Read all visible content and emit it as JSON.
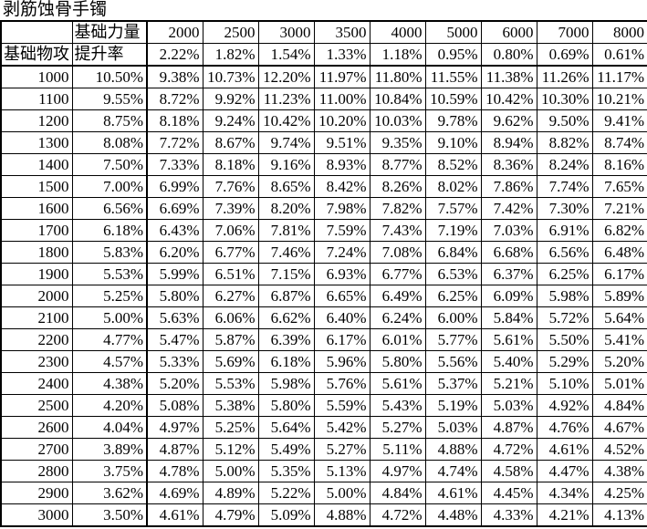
{
  "title": "剥筋蚀骨手镯",
  "table": {
    "corner_label": "",
    "strength_header": "基础力量",
    "attack_header": "基础物攻",
    "rate_header": "提升率",
    "strength_columns": [
      "2000",
      "2500",
      "3000",
      "3500",
      "4000",
      "5000",
      "6000",
      "7000",
      "8000"
    ],
    "base_rates": [
      "2.22%",
      "1.82%",
      "1.54%",
      "1.33%",
      "1.18%",
      "0.95%",
      "0.80%",
      "0.69%",
      "0.61%"
    ],
    "rows": [
      {
        "attack": "1000",
        "rate": "10.50%",
        "values": [
          "9.38%",
          "10.73%",
          "12.20%",
          "11.97%",
          "11.80%",
          "11.55%",
          "11.38%",
          "11.26%",
          "11.17%"
        ]
      },
      {
        "attack": "1100",
        "rate": "9.55%",
        "values": [
          "8.72%",
          "9.92%",
          "11.23%",
          "11.00%",
          "10.84%",
          "10.59%",
          "10.42%",
          "10.30%",
          "10.21%"
        ]
      },
      {
        "attack": "1200",
        "rate": "8.75%",
        "values": [
          "8.18%",
          "9.24%",
          "10.42%",
          "10.20%",
          "10.03%",
          "9.78%",
          "9.62%",
          "9.50%",
          "9.41%"
        ]
      },
      {
        "attack": "1300",
        "rate": "8.08%",
        "values": [
          "7.72%",
          "8.67%",
          "9.74%",
          "9.51%",
          "9.35%",
          "9.10%",
          "8.94%",
          "8.82%",
          "8.74%"
        ]
      },
      {
        "attack": "1400",
        "rate": "7.50%",
        "values": [
          "7.33%",
          "8.18%",
          "9.16%",
          "8.93%",
          "8.77%",
          "8.52%",
          "8.36%",
          "8.24%",
          "8.16%"
        ]
      },
      {
        "attack": "1500",
        "rate": "7.00%",
        "values": [
          "6.99%",
          "7.76%",
          "8.65%",
          "8.42%",
          "8.26%",
          "8.02%",
          "7.86%",
          "7.74%",
          "7.65%"
        ]
      },
      {
        "attack": "1600",
        "rate": "6.56%",
        "values": [
          "6.69%",
          "7.39%",
          "8.20%",
          "7.98%",
          "7.82%",
          "7.57%",
          "7.42%",
          "7.30%",
          "7.21%"
        ]
      },
      {
        "attack": "1700",
        "rate": "6.18%",
        "values": [
          "6.43%",
          "7.06%",
          "7.81%",
          "7.59%",
          "7.43%",
          "7.19%",
          "7.03%",
          "6.91%",
          "6.82%"
        ]
      },
      {
        "attack": "1800",
        "rate": "5.83%",
        "values": [
          "6.20%",
          "6.77%",
          "7.46%",
          "7.24%",
          "7.08%",
          "6.84%",
          "6.68%",
          "6.56%",
          "6.48%"
        ]
      },
      {
        "attack": "1900",
        "rate": "5.53%",
        "values": [
          "5.99%",
          "6.51%",
          "7.15%",
          "6.93%",
          "6.77%",
          "6.53%",
          "6.37%",
          "6.25%",
          "6.17%"
        ]
      },
      {
        "attack": "2000",
        "rate": "5.25%",
        "values": [
          "5.80%",
          "6.27%",
          "6.87%",
          "6.65%",
          "6.49%",
          "6.25%",
          "6.09%",
          "5.98%",
          "5.89%"
        ]
      },
      {
        "attack": "2100",
        "rate": "5.00%",
        "values": [
          "5.63%",
          "6.06%",
          "6.62%",
          "6.40%",
          "6.24%",
          "6.00%",
          "5.84%",
          "5.72%",
          "5.64%"
        ]
      },
      {
        "attack": "2200",
        "rate": "4.77%",
        "values": [
          "5.47%",
          "5.87%",
          "6.39%",
          "6.17%",
          "6.01%",
          "5.77%",
          "5.61%",
          "5.50%",
          "5.41%"
        ]
      },
      {
        "attack": "2300",
        "rate": "4.57%",
        "values": [
          "5.33%",
          "5.69%",
          "6.18%",
          "5.96%",
          "5.80%",
          "5.56%",
          "5.40%",
          "5.29%",
          "5.20%"
        ]
      },
      {
        "attack": "2400",
        "rate": "4.38%",
        "values": [
          "5.20%",
          "5.53%",
          "5.98%",
          "5.76%",
          "5.61%",
          "5.37%",
          "5.21%",
          "5.10%",
          "5.01%"
        ]
      },
      {
        "attack": "2500",
        "rate": "4.20%",
        "values": [
          "5.08%",
          "5.38%",
          "5.80%",
          "5.59%",
          "5.43%",
          "5.19%",
          "5.03%",
          "4.92%",
          "4.84%"
        ]
      },
      {
        "attack": "2600",
        "rate": "4.04%",
        "values": [
          "4.97%",
          "5.25%",
          "5.64%",
          "5.42%",
          "5.27%",
          "5.03%",
          "4.87%",
          "4.76%",
          "4.67%"
        ]
      },
      {
        "attack": "2700",
        "rate": "3.89%",
        "values": [
          "4.87%",
          "5.12%",
          "5.49%",
          "5.27%",
          "5.11%",
          "4.88%",
          "4.72%",
          "4.61%",
          "4.52%"
        ]
      },
      {
        "attack": "2800",
        "rate": "3.75%",
        "values": [
          "4.78%",
          "5.00%",
          "5.35%",
          "5.13%",
          "4.97%",
          "4.74%",
          "4.58%",
          "4.47%",
          "4.38%"
        ]
      },
      {
        "attack": "2900",
        "rate": "3.62%",
        "values": [
          "4.69%",
          "4.89%",
          "5.22%",
          "5.00%",
          "4.84%",
          "4.61%",
          "4.45%",
          "4.34%",
          "4.25%"
        ]
      },
      {
        "attack": "3000",
        "rate": "3.50%",
        "values": [
          "4.61%",
          "4.79%",
          "5.09%",
          "4.88%",
          "4.72%",
          "4.48%",
          "4.33%",
          "4.21%",
          "4.13%"
        ]
      }
    ]
  },
  "colors": {
    "grid_line": "#000000",
    "text": "#000000",
    "background": "#ffffff"
  }
}
